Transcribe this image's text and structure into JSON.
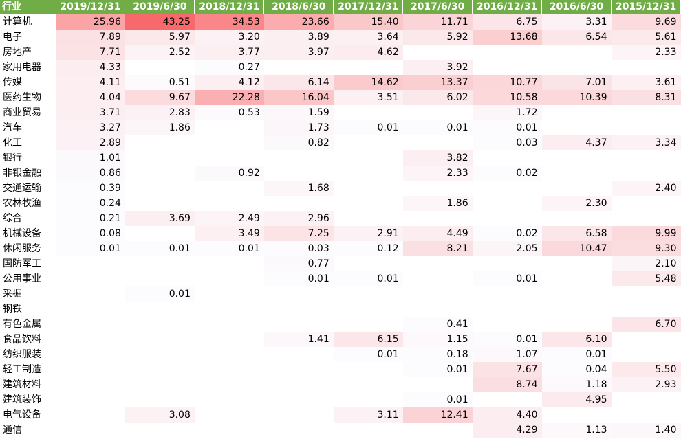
{
  "chart_data": {
    "type": "heatmap",
    "row_header": "行业",
    "columns": [
      "2019/12/31",
      "2019/6/30",
      "2018/12/31",
      "2018/6/30",
      "2017/12/31",
      "2017/6/30",
      "2016/12/31",
      "2016/6/30",
      "2015/12/31"
    ],
    "rows": [
      {
        "label": "计算机",
        "values": [
          25.96,
          43.25,
          34.53,
          23.66,
          15.4,
          11.71,
          6.75,
          3.31,
          9.69
        ]
      },
      {
        "label": "电子",
        "values": [
          7.89,
          5.97,
          3.2,
          3.89,
          3.64,
          5.92,
          13.68,
          6.54,
          5.61
        ]
      },
      {
        "label": "房地产",
        "values": [
          7.71,
          2.52,
          3.77,
          3.97,
          4.62,
          null,
          null,
          null,
          2.33
        ]
      },
      {
        "label": "家用电器",
        "values": [
          4.33,
          null,
          0.27,
          null,
          null,
          3.92,
          null,
          null,
          null
        ]
      },
      {
        "label": "传媒",
        "values": [
          4.11,
          0.51,
          4.12,
          6.14,
          14.62,
          13.37,
          10.77,
          7.01,
          3.61
        ]
      },
      {
        "label": "医药生物",
        "values": [
          4.04,
          9.67,
          22.28,
          16.04,
          3.51,
          6.02,
          10.58,
          10.39,
          8.31
        ]
      },
      {
        "label": "商业贸易",
        "values": [
          3.71,
          2.83,
          0.53,
          1.59,
          null,
          null,
          1.72,
          null,
          null
        ]
      },
      {
        "label": "汽车",
        "values": [
          3.27,
          1.86,
          null,
          1.73,
          0.01,
          0.01,
          0.01,
          null,
          null
        ]
      },
      {
        "label": "化工",
        "values": [
          2.89,
          null,
          null,
          0.82,
          null,
          null,
          0.03,
          4.37,
          3.34
        ]
      },
      {
        "label": "银行",
        "values": [
          1.01,
          null,
          null,
          null,
          null,
          3.82,
          null,
          null,
          null
        ]
      },
      {
        "label": "非银金融",
        "values": [
          0.86,
          null,
          0.92,
          null,
          null,
          2.33,
          0.02,
          null,
          null
        ]
      },
      {
        "label": "交通运输",
        "values": [
          0.39,
          null,
          null,
          1.68,
          null,
          null,
          null,
          null,
          2.4
        ]
      },
      {
        "label": "农林牧渔",
        "values": [
          0.24,
          null,
          null,
          null,
          null,
          1.86,
          null,
          2.3,
          null
        ]
      },
      {
        "label": "综合",
        "values": [
          0.21,
          3.69,
          2.49,
          2.96,
          null,
          null,
          null,
          null,
          null
        ]
      },
      {
        "label": "机械设备",
        "values": [
          0.08,
          null,
          3.49,
          7.25,
          2.91,
          4.49,
          0.02,
          6.58,
          9.99
        ]
      },
      {
        "label": "休闲服务",
        "values": [
          0.01,
          0.01,
          0.01,
          0.03,
          0.12,
          8.21,
          2.05,
          10.47,
          9.3
        ]
      },
      {
        "label": "国防军工",
        "values": [
          null,
          null,
          null,
          0.77,
          null,
          null,
          null,
          null,
          2.1
        ]
      },
      {
        "label": "公用事业",
        "values": [
          null,
          null,
          null,
          0.01,
          0.01,
          null,
          0.01,
          null,
          5.48
        ]
      },
      {
        "label": "采掘",
        "values": [
          null,
          0.01,
          null,
          null,
          null,
          null,
          null,
          null,
          null
        ]
      },
      {
        "label": "钢铁",
        "values": [
          null,
          null,
          null,
          null,
          null,
          null,
          null,
          null,
          null
        ]
      },
      {
        "label": "有色金属",
        "values": [
          null,
          null,
          null,
          null,
          null,
          0.41,
          null,
          null,
          6.7
        ]
      },
      {
        "label": "食品饮料",
        "values": [
          null,
          null,
          null,
          1.41,
          6.15,
          1.15,
          0.01,
          6.1,
          null
        ]
      },
      {
        "label": "纺织服装",
        "values": [
          null,
          null,
          null,
          null,
          0.01,
          0.18,
          1.07,
          0.01,
          null
        ]
      },
      {
        "label": "轻工制造",
        "values": [
          null,
          null,
          null,
          null,
          null,
          0.01,
          7.67,
          0.04,
          5.5
        ]
      },
      {
        "label": "建筑材料",
        "values": [
          null,
          null,
          null,
          null,
          null,
          null,
          8.74,
          1.18,
          2.93
        ]
      },
      {
        "label": "建筑装饰",
        "values": [
          null,
          null,
          null,
          null,
          null,
          0.01,
          null,
          4.95,
          null
        ]
      },
      {
        "label": "电气设备",
        "values": [
          null,
          3.08,
          null,
          null,
          3.11,
          12.41,
          4.4,
          null,
          null
        ]
      },
      {
        "label": "通信",
        "values": [
          null,
          null,
          null,
          null,
          null,
          null,
          4.29,
          1.13,
          1.4
        ]
      }
    ],
    "colors": {
      "header_bg": "#70ad47",
      "header_text": "#ffffff",
      "low": "#fcfcff",
      "high": "#f8696b"
    },
    "value_range": [
      0.01,
      43.25
    ]
  }
}
